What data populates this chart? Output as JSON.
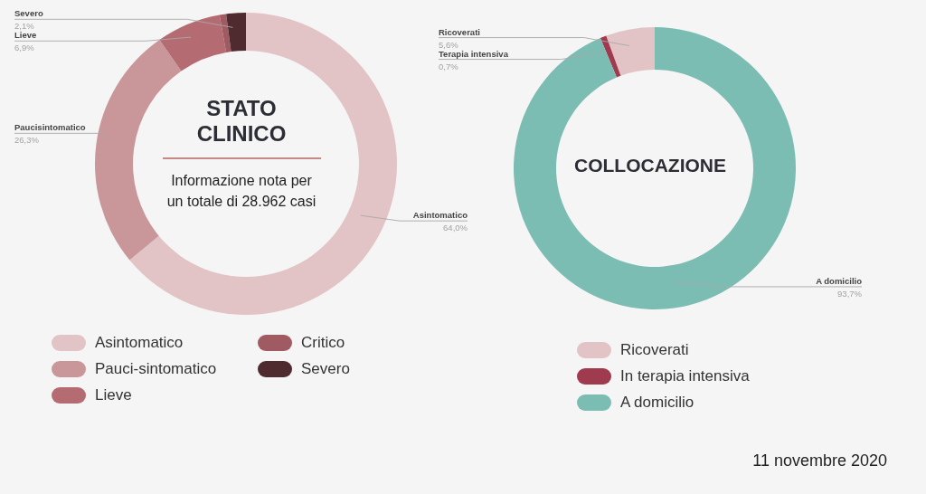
{
  "chart_data": [
    {
      "type": "donut",
      "title": "STATO CLINICO",
      "subtitle": "Informazione nota per un totale di 28.962 casi",
      "categories": [
        "Asintomatico",
        "Pauci-sintomatico",
        "Lieve",
        "Critico",
        "Severo"
      ],
      "values": [
        64.0,
        26.3,
        6.9,
        0.7,
        2.1
      ],
      "colors": [
        "#e2c4c7",
        "#c9979a",
        "#b46c72",
        "#a05a62",
        "#4f2b30"
      ],
      "value_labels": [
        "64,0%",
        "26,3%",
        "6,9%",
        null,
        "2,1%"
      ],
      "annotations": [
        {
          "text": "Asintomatico",
          "x": "Asintomatico"
        },
        {
          "text": "Paucisintomatico",
          "x": "Pauci-sintomatico"
        },
        {
          "text": "Lieve",
          "x": "Lieve"
        },
        {
          "text": "Severo",
          "x": "Severo"
        }
      ],
      "legend": "bottom"
    },
    {
      "type": "donut",
      "title": "COLLOCAZIONE",
      "categories": [
        "Ricoverati",
        "In terapia intensiva",
        "A domicilio"
      ],
      "values": [
        5.6,
        0.7,
        93.7
      ],
      "colors": [
        "#e2c4c7",
        "#a03a4e",
        "#7bbdb3"
      ],
      "value_labels": [
        "5,6%",
        "0,7%",
        "93,7%"
      ],
      "annotations": [
        {
          "text": "Ricoverati",
          "x": "Ricoverati"
        },
        {
          "text": "Terapia intensiva",
          "x": "In terapia intensiva"
        },
        {
          "text": "A domicilio",
          "x": "A domicilio"
        },
        "11 novembre 2020"
      ],
      "legend": "bottom"
    }
  ]
}
